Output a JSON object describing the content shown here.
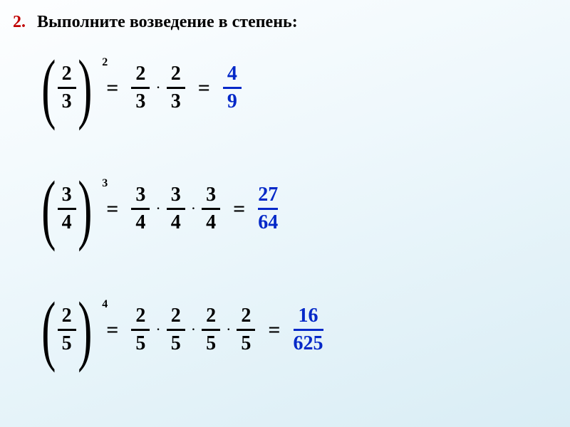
{
  "title": {
    "number": "2.",
    "text": "Выполните возведение в степень:"
  },
  "colors": {
    "accent": "#c00000",
    "result": "#0328c8",
    "text": "#000000"
  },
  "typography": {
    "title_fontsize": 24,
    "fraction_fontsize": 28,
    "paren_fontsize": 110,
    "exponent_fontsize": 16
  },
  "equations": [
    {
      "base": {
        "num": "2",
        "den": "3"
      },
      "exponent": "2",
      "expansion": [
        {
          "num": "2",
          "den": "3"
        },
        {
          "num": "2",
          "den": "3"
        }
      ],
      "result": {
        "num": "4",
        "den": "9"
      }
    },
    {
      "base": {
        "num": "3",
        "den": "4"
      },
      "exponent": "3",
      "expansion": [
        {
          "num": "3",
          "den": "4"
        },
        {
          "num": "3",
          "den": "4"
        },
        {
          "num": "3",
          "den": "4"
        }
      ],
      "result": {
        "num": "27",
        "den": "64"
      }
    },
    {
      "base": {
        "num": "2",
        "den": "5"
      },
      "exponent": "4",
      "expansion": [
        {
          "num": "2",
          "den": "5"
        },
        {
          "num": "2",
          "den": "5"
        },
        {
          "num": "2",
          "den": "5"
        },
        {
          "num": "2",
          "den": "5"
        }
      ],
      "result": {
        "num": "16",
        "den": "625"
      }
    }
  ],
  "symbols": {
    "equals": "=",
    "dot": "·"
  }
}
